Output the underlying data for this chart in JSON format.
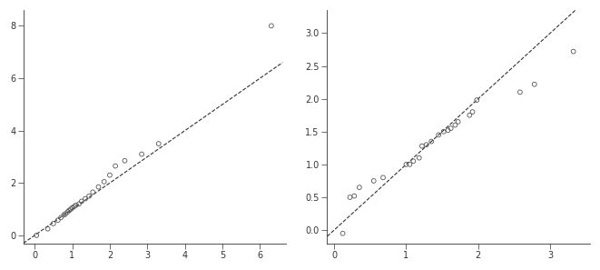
{
  "left": {
    "points_x": [
      0.05,
      0.35,
      0.5,
      0.62,
      0.7,
      0.78,
      0.82,
      0.88,
      0.92,
      0.96,
      1.0,
      1.05,
      1.1,
      1.18,
      1.25,
      1.35,
      1.45,
      1.55,
      1.7,
      1.85,
      2.0,
      2.15,
      2.4,
      2.85,
      3.3,
      6.3
    ],
    "points_y": [
      0.0,
      0.25,
      0.45,
      0.58,
      0.68,
      0.78,
      0.82,
      0.9,
      0.95,
      1.0,
      1.05,
      1.1,
      1.15,
      1.2,
      1.3,
      1.4,
      1.5,
      1.65,
      1.85,
      2.05,
      2.3,
      2.65,
      2.85,
      3.1,
      3.5,
      8.0
    ],
    "line_x": [
      -0.3,
      6.6
    ],
    "line_y": [
      -0.3,
      6.6
    ],
    "xlim": [
      -0.3,
      6.7
    ],
    "ylim": [
      -0.3,
      8.6
    ],
    "xticks": [
      0,
      1,
      2,
      3,
      4,
      5,
      6
    ],
    "yticks": [
      0,
      2,
      4,
      6,
      8
    ],
    "xticklabels": [
      "0",
      "1",
      "2",
      "3",
      "4",
      "5",
      "6"
    ],
    "yticklabels": [
      "0",
      "2",
      "4",
      "6",
      "8"
    ]
  },
  "right": {
    "points_x": [
      0.12,
      0.22,
      0.28,
      0.35,
      0.55,
      0.68,
      1.0,
      1.05,
      1.1,
      1.18,
      1.22,
      1.28,
      1.35,
      1.45,
      1.52,
      1.58,
      1.62,
      1.68,
      1.72,
      1.88,
      1.92,
      1.98,
      2.58,
      2.78,
      3.32
    ],
    "points_y": [
      -0.05,
      0.5,
      0.52,
      0.65,
      0.75,
      0.8,
      1.0,
      1.0,
      1.05,
      1.1,
      1.28,
      1.3,
      1.35,
      1.45,
      1.5,
      1.52,
      1.55,
      1.6,
      1.65,
      1.75,
      1.8,
      1.98,
      2.1,
      2.22,
      2.72
    ],
    "line_x": [
      -0.15,
      3.5
    ],
    "line_y": [
      -0.15,
      3.5
    ],
    "xlim": [
      -0.1,
      3.55
    ],
    "ylim": [
      -0.2,
      3.35
    ],
    "xticks": [
      0,
      1,
      2,
      3
    ],
    "yticks": [
      0.0,
      0.5,
      1.0,
      1.5,
      2.0,
      2.5,
      3.0
    ],
    "xticklabels": [
      "0",
      "1",
      "2",
      "3"
    ],
    "yticklabels": [
      "0.0",
      "0.5",
      "1.0",
      "1.5",
      "2.0",
      "2.5",
      "3.0"
    ]
  },
  "bg_color": "#ffffff",
  "line_color": "#333333",
  "point_color": "#555555",
  "point_size": 12,
  "line_style": "--",
  "line_width": 0.8
}
